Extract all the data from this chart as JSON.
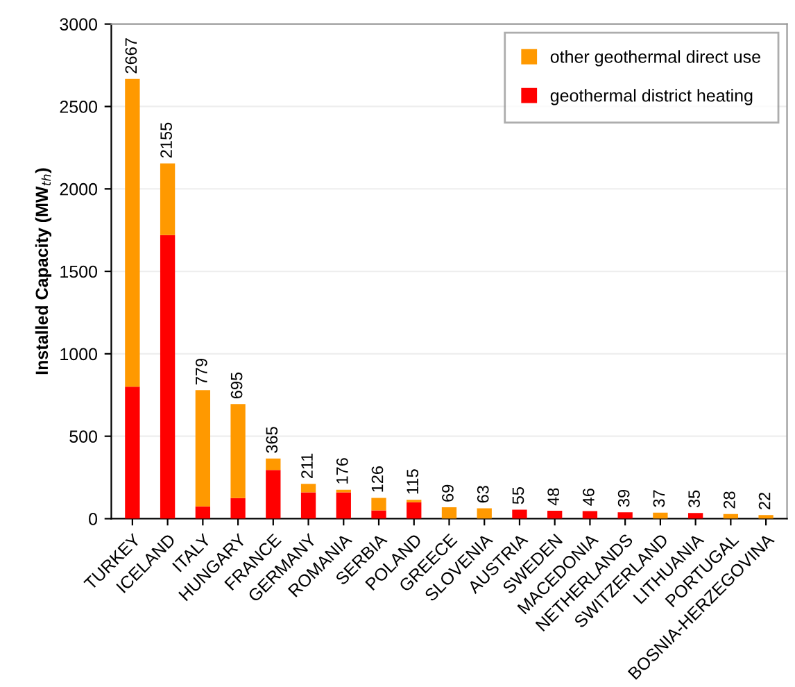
{
  "chart_data": {
    "type": "bar",
    "stacked": true,
    "ylabel": "Installed Capacity (MW$_{th}$)",
    "categories": [
      "TURKEY",
      "ICELAND",
      "ITALY",
      "HUNGARY",
      "FRANCE",
      "GERMANY",
      "ROMANIA",
      "SERBIA",
      "POLAND",
      "GREECE",
      "SLOVENIA",
      "AUSTRIA",
      "SWEDEN",
      "MACEDONIA",
      "NETHERLANDS",
      "SWITZERLAND",
      "LITHUANIA",
      "PORTUGAL",
      "BOSNIA-HERZEGOVINA"
    ],
    "series": [
      {
        "name": "geothermal district heating",
        "color": "#ff0000",
        "values": [
          800,
          1720,
          75,
          125,
          295,
          160,
          160,
          50,
          100,
          0,
          0,
          55,
          48,
          46,
          39,
          0,
          35,
          0,
          0
        ]
      },
      {
        "name": "other geothermal direct use",
        "color": "#ff9900",
        "values": [
          1867,
          435,
          704,
          570,
          70,
          51,
          16,
          76,
          15,
          69,
          63,
          0,
          0,
          0,
          0,
          37,
          0,
          28,
          22
        ]
      }
    ],
    "totals": [
      "2667",
      "2155",
      "779",
      "695",
      "365",
      "211",
      "176",
      "126",
      "115",
      "69",
      "63",
      "55",
      "48",
      "46",
      "39",
      "37",
      "35",
      "28",
      "22"
    ],
    "ylim": [
      0,
      3000
    ],
    "yticks": [
      0,
      500,
      1000,
      1500,
      2000,
      2500,
      3000
    ],
    "grid": "y",
    "legend": "top right"
  }
}
